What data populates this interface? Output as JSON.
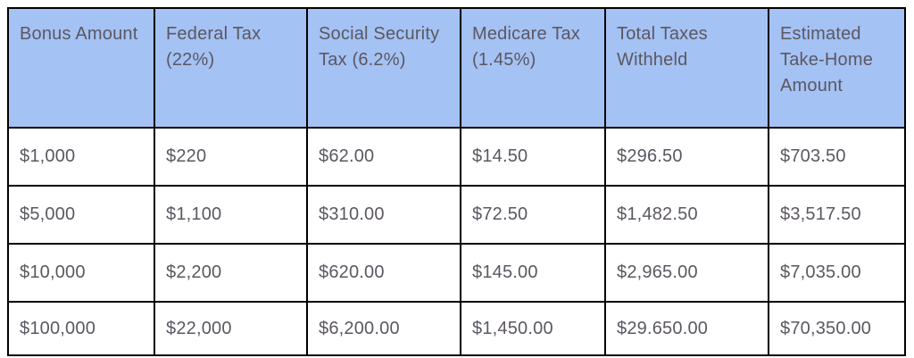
{
  "table": {
    "title": "bonus-tax-withholding-table",
    "header_bg": "#a4c2f4",
    "grid_color": "#000000",
    "text_color": "#5c5760",
    "page_bg": "#ffffff",
    "columns": [
      "Bonus Amount",
      "Federal Tax (22%)",
      "Social Security Tax (6.2%)",
      "Medicare Tax (1.45%)",
      "Total Taxes Withheld",
      "Estimated Take-Home Amount"
    ],
    "rows": [
      [
        "$1,000",
        "$220",
        "$62.00",
        "$14.50",
        "$296.50",
        "$703.50"
      ],
      [
        "$5,000",
        "$1,100",
        "$310.00",
        "$72.50",
        "$1,482.50",
        "$3,517.50"
      ],
      [
        "$10,000",
        "$2,200",
        "$620.00",
        "$145.00",
        "$2,965.00",
        "$7,035.00"
      ],
      [
        "$100,000",
        "$22,000",
        "$6,200.00",
        "$1,450.00",
        "$29.650.00",
        "$70,350.00"
      ]
    ]
  }
}
